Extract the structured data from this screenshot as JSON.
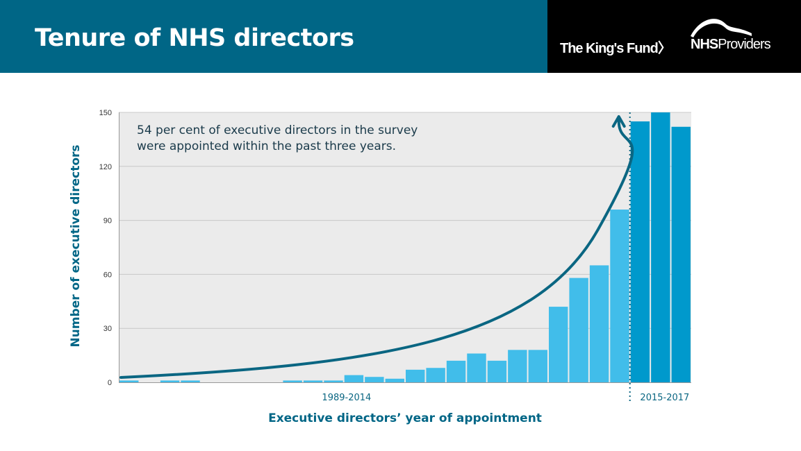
{
  "header": {
    "title": "Tenure of NHS directors",
    "logo_kings_fund": "The King's Fund〉",
    "logo_nhs_providers_bold": "NHS",
    "logo_nhs_providers_rest": "Providers"
  },
  "colors": {
    "brand_teal": "#006686",
    "bar_light": "#41BDEA",
    "bar_dark": "#0099CC",
    "plot_bg": "#EBEBEB",
    "arrow": "#0A6682",
    "header_black": "#000000"
  },
  "chart_data": {
    "type": "bar",
    "title": "",
    "ylabel": "Number of executive directors",
    "xlabel": "Executive directors’ year of appointment",
    "ylim": [
      0,
      150
    ],
    "yticks": [
      0,
      30,
      60,
      90,
      120,
      150
    ],
    "grid": true,
    "annotation": [
      "54 per cent of executive directors in the survey",
      "were appointed within the past three years."
    ],
    "groups": [
      {
        "label": "1989-2014",
        "values": [
          1,
          0,
          1,
          1,
          0,
          0,
          0,
          0,
          1,
          1,
          1,
          4,
          3,
          2,
          7,
          8,
          12,
          16,
          12,
          18,
          18,
          42,
          58,
          65,
          96
        ]
      },
      {
        "label": "2015-2017",
        "values": [
          145,
          150,
          142
        ]
      }
    ]
  }
}
